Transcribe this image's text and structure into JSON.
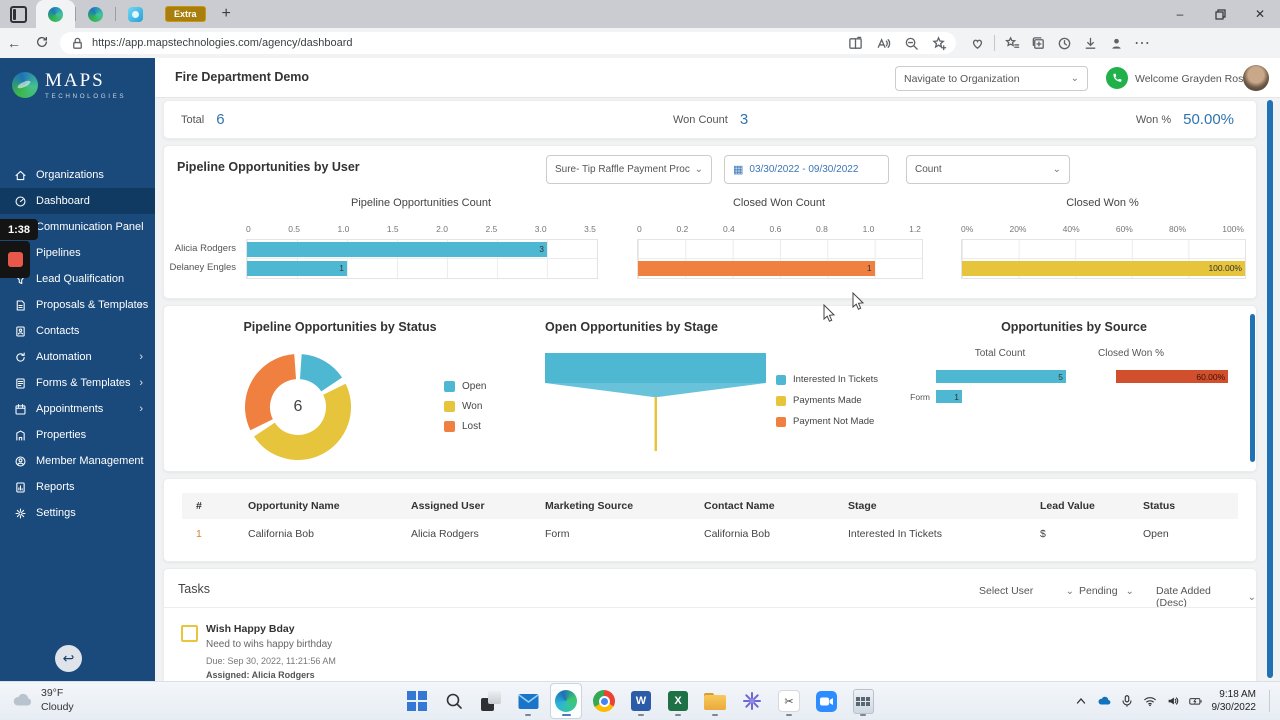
{
  "browser": {
    "url": "https://app.mapstechnologies.com/agency/dashboard",
    "tab_group_label": "Extra"
  },
  "recording": {
    "elapsed": "1:38"
  },
  "sidebar": {
    "logo_title": "MAPS",
    "logo_subtitle": "TECHNOLOGIES",
    "items": [
      {
        "label": "Organizations"
      },
      {
        "label": "Dashboard"
      },
      {
        "label": "Communication Panel"
      },
      {
        "label": "Pipelines"
      },
      {
        "label": "Lead Qualification"
      },
      {
        "label": "Proposals & Templates"
      },
      {
        "label": "Contacts"
      },
      {
        "label": "Automation"
      },
      {
        "label": "Forms & Templates"
      },
      {
        "label": "Appointments"
      },
      {
        "label": "Properties"
      },
      {
        "label": "Member Management"
      },
      {
        "label": "Reports"
      },
      {
        "label": "Settings"
      }
    ]
  },
  "header": {
    "title": "Fire Department Demo",
    "org_dropdown_label": "Navigate to Organization",
    "welcome_text": "Welcome Grayden Ross"
  },
  "stats": {
    "total_label": "Total",
    "total_value": "6",
    "won_count_label": "Won Count",
    "won_count_value": "3",
    "won_pct_label": "Won %",
    "won_pct_value": "50.00%"
  },
  "filters": {
    "pipeline": "Sure- Tip Raffle Payment Proc",
    "date_range": "03/30/2022 - 09/30/2022",
    "metric": "Count"
  },
  "sections": {
    "by_user_title": "Pipeline Opportunities by User"
  },
  "chart_data": [
    {
      "type": "bar",
      "title": "Pipeline Opportunities Count",
      "orientation": "horizontal",
      "categories": [
        "Alicia Rodgers",
        "Delaney Engles"
      ],
      "values": [
        3,
        1
      ],
      "bar_labels": [
        "3",
        "1"
      ],
      "xlim": [
        0,
        3.5
      ],
      "ticks": [
        "0",
        "0.5",
        "1.0",
        "1.5",
        "2.0",
        "2.5",
        "3.0",
        "3.5"
      ],
      "color": "#4eb8d3"
    },
    {
      "type": "bar",
      "title": "Closed Won Count",
      "orientation": "horizontal",
      "categories": [
        "Alicia Rodgers",
        "Delaney Engles"
      ],
      "values": [
        0,
        1
      ],
      "bar_labels": [
        "",
        "1"
      ],
      "xlim": [
        0,
        1.2
      ],
      "ticks": [
        "0",
        "0.2",
        "0.4",
        "0.6",
        "0.8",
        "1.0",
        "1.2"
      ],
      "color": "#ef803f"
    },
    {
      "type": "bar",
      "title": "Closed Won %",
      "orientation": "horizontal",
      "categories": [
        "Alicia Rodgers",
        "Delaney Engles"
      ],
      "values": [
        0,
        100
      ],
      "bar_labels": [
        "",
        "100.00%"
      ],
      "xlim": [
        0,
        100
      ],
      "ticks": [
        "0%",
        "20%",
        "40%",
        "60%",
        "80%",
        "100%"
      ],
      "color": "#e6c43c"
    },
    {
      "type": "pie",
      "title": "Pipeline Opportunities by Status",
      "center_label": "6",
      "slices": [
        {
          "label": "Open",
          "value": 1,
          "color": "#4eb8d3"
        },
        {
          "label": "Won",
          "value": 3,
          "color": "#e6c43c"
        },
        {
          "label": "Lost",
          "value": 2,
          "color": "#ef803f"
        }
      ]
    },
    {
      "type": "funnel",
      "title": "Open Opportunities by Stage",
      "stages": [
        {
          "label": "Interested In Tickets",
          "value": 1,
          "color": "#4eb8d3"
        },
        {
          "label": "Payments Made",
          "value": 0,
          "color": "#e6c43c"
        },
        {
          "label": "Payment Not Made",
          "value": 0,
          "color": "#ef803f"
        }
      ]
    },
    {
      "type": "bar",
      "title": "Opportunities by Source",
      "column_headers": [
        "Total Count",
        "Closed Won %"
      ],
      "rows": [
        {
          "label": "",
          "count": 5,
          "count_label": "5",
          "won_pct": 60,
          "won_pct_label": "60.00%"
        },
        {
          "label": "Form",
          "count": 1,
          "count_label": "1"
        }
      ]
    }
  ],
  "table": {
    "headers": [
      "#",
      "Opportunity Name",
      "Assigned User",
      "Marketing Source",
      "Contact Name",
      "Stage",
      "Lead Value",
      "Status"
    ],
    "rows": [
      [
        "1",
        "California Bob",
        "Alicia Rodgers",
        "Form",
        "California Bob",
        "Interested In Tickets",
        "$",
        "Open"
      ]
    ]
  },
  "tasks": {
    "title": "Tasks",
    "user_filter": "Select User",
    "status_filter": "Pending",
    "sort_filter": "Date Added (Desc)",
    "items": [
      {
        "title": "Wish Happy Bday",
        "description": "Need to wihs happy birthday",
        "due": "Due: Sep 30, 2022, 11:21:56 AM",
        "assigned": "Assigned: Alicia Rodgers"
      }
    ]
  },
  "taskbar": {
    "weather_temp": "39°F",
    "weather_desc": "Cloudy",
    "time": "9:18 AM",
    "date": "9/30/2022"
  },
  "colors": {
    "teal": "#4eb8d3",
    "yellow": "#e6c43c",
    "orange": "#ef803f",
    "red": "#d14f2c",
    "accent_blue": "#3174ad",
    "sidebar_blue": "#1a4a7c",
    "scrollbar_blue": "#2171b5",
    "phone_green": "#21b14b"
  }
}
